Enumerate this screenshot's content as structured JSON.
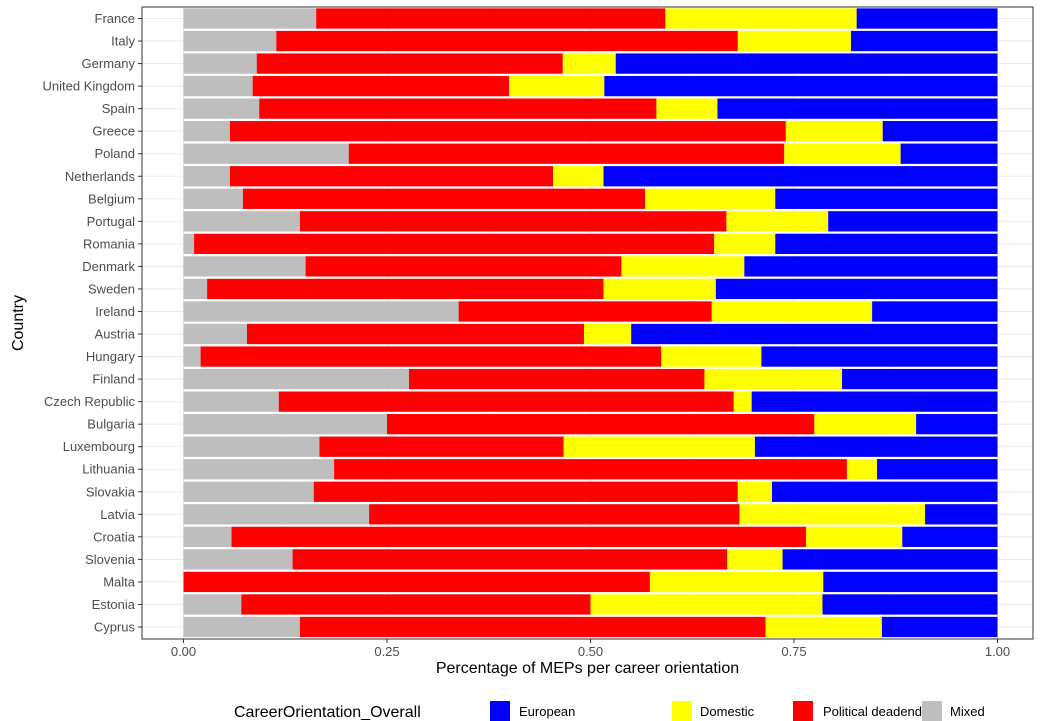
{
  "chart_data": {
    "type": "bar",
    "orientation": "horizontal",
    "stacked": true,
    "xlabel": "Percentage of MEPs per career orientation",
    "ylabel": "Country",
    "xlim": [
      0,
      1
    ],
    "xticks": [
      "0.00",
      "0.25",
      "0.50",
      "0.75",
      "1.00"
    ],
    "grid": true,
    "legend": {
      "title": "CareerOrientation_Overall",
      "position": "bottom",
      "entries": [
        {
          "name": "European",
          "color": "#0000ff"
        },
        {
          "name": "Domestic",
          "color": "#ffff00"
        },
        {
          "name": "Political deadend",
          "color": "#ff0000"
        },
        {
          "name": "Mixed",
          "color": "#bebebe"
        }
      ]
    },
    "categories": [
      "France",
      "Italy",
      "Germany",
      "United Kingdom",
      "Spain",
      "Greece",
      "Poland",
      "Netherlands",
      "Belgium",
      "Portugal",
      "Romania",
      "Denmark",
      "Sweden",
      "Ireland",
      "Austria",
      "Hungary",
      "Finland",
      "Czech Republic",
      "Bulgaria",
      "Luxembourg",
      "Lithuania",
      "Slovakia",
      "Latvia",
      "Croatia",
      "Slovenia",
      "Malta",
      "Estonia",
      "Cyprus"
    ],
    "series": [
      {
        "name": "Mixed",
        "color": "#bebebe",
        "values": [
          0.163,
          0.114,
          0.09,
          0.085,
          0.093,
          0.057,
          0.203,
          0.057,
          0.073,
          0.143,
          0.013,
          0.15,
          0.029,
          0.338,
          0.078,
          0.021,
          0.277,
          0.117,
          0.25,
          0.167,
          0.185,
          0.16,
          0.228,
          0.059,
          0.134,
          0.0,
          0.071,
          0.143
        ]
      },
      {
        "name": "Political deadend",
        "color": "#ff0000",
        "values": [
          0.429,
          0.567,
          0.376,
          0.315,
          0.488,
          0.683,
          0.535,
          0.397,
          0.494,
          0.524,
          0.639,
          0.388,
          0.487,
          0.311,
          0.414,
          0.566,
          0.363,
          0.559,
          0.525,
          0.3,
          0.63,
          0.521,
          0.455,
          0.706,
          0.534,
          0.573,
          0.429,
          0.572
        ]
      },
      {
        "name": "Domestic",
        "color": "#ffff00",
        "values": [
          0.235,
          0.139,
          0.065,
          0.117,
          0.075,
          0.119,
          0.143,
          0.062,
          0.16,
          0.125,
          0.075,
          0.151,
          0.138,
          0.197,
          0.058,
          0.123,
          0.169,
          0.022,
          0.125,
          0.235,
          0.037,
          0.042,
          0.228,
          0.118,
          0.068,
          0.213,
          0.285,
          0.143
        ]
      },
      {
        "name": "European",
        "color": "#0000ff",
        "values": [
          0.173,
          0.18,
          0.469,
          0.483,
          0.344,
          0.141,
          0.119,
          0.484,
          0.273,
          0.208,
          0.273,
          0.311,
          0.346,
          0.154,
          0.45,
          0.29,
          0.191,
          0.302,
          0.1,
          0.298,
          0.148,
          0.277,
          0.089,
          0.117,
          0.264,
          0.214,
          0.215,
          0.142
        ]
      }
    ]
  }
}
